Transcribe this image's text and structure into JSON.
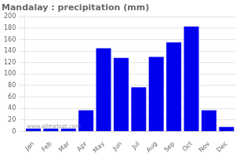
{
  "chart_data": {
    "type": "bar",
    "title": "Mandalay : precipitation (mm)",
    "categories": [
      "Jan",
      "Feb",
      "Mar",
      "Apr",
      "May",
      "Jun",
      "Jul",
      "Aug",
      "Sep",
      "Oct",
      "Nov",
      "Dec"
    ],
    "values": [
      5,
      5,
      5,
      37,
      145,
      128,
      77,
      130,
      155,
      183,
      37,
      8
    ],
    "color": "#0000ee",
    "ylim": [
      0,
      200
    ],
    "yticks": [
      0,
      20,
      40,
      60,
      80,
      100,
      120,
      140,
      160,
      180,
      200
    ],
    "grid": true,
    "annotation": "www.allmetsat.com"
  }
}
